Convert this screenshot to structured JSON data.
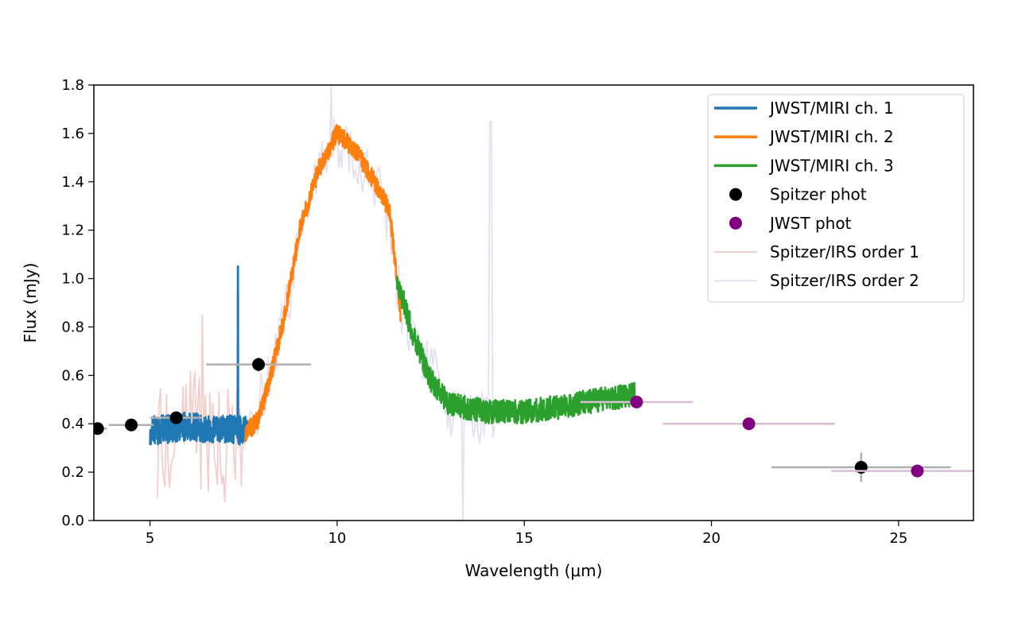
{
  "chart_data": {
    "type": "line",
    "title": "",
    "xlabel": "Wavelength (μm)",
    "ylabel": "Flux (mJy)",
    "xlim": [
      3.5,
      27
    ],
    "ylim": [
      0.0,
      1.8
    ],
    "xticks": [
      5,
      10,
      15,
      20,
      25
    ],
    "xtick_labels": [
      "5",
      "10",
      "15",
      "20",
      "25"
    ],
    "yticks": [
      0.0,
      0.2,
      0.4,
      0.6,
      0.8,
      1.0,
      1.2,
      1.4,
      1.6,
      1.8
    ],
    "ytick_labels": [
      "0.0",
      "0.2",
      "0.4",
      "0.6",
      "0.8",
      "1.0",
      "1.2",
      "1.4",
      "1.6",
      "1.8"
    ],
    "grid": false,
    "legend_position": "top-right",
    "series": [
      {
        "name": "Spitzer/IRS order 1",
        "kind": "line",
        "color": "#f2cfcc",
        "noise": 0.25,
        "seed": 11,
        "points": [
          [
            5.2,
            0.3
          ],
          [
            5.6,
            0.4
          ],
          [
            6.0,
            0.45
          ],
          [
            6.5,
            0.35
          ],
          [
            7.0,
            0.3
          ],
          [
            7.5,
            0.35
          ]
        ]
      },
      {
        "name": "Spitzer/IRS order 2",
        "kind": "line",
        "color": "#e3e0ef",
        "noise": 0.12,
        "seed": 23,
        "points": [
          [
            7.4,
            0.35
          ],
          [
            8.0,
            0.5
          ],
          [
            8.6,
            0.85
          ],
          [
            9.2,
            1.35
          ],
          [
            9.8,
            1.55
          ],
          [
            10.5,
            1.5
          ],
          [
            11.2,
            1.35
          ],
          [
            11.8,
            0.8
          ],
          [
            12.3,
            0.7
          ],
          [
            13.0,
            0.45
          ],
          [
            13.6,
            0.4
          ],
          [
            14.2,
            0.45
          ]
        ]
      },
      {
        "name": "JWST/MIRI ch. 1",
        "kind": "line",
        "color": "#1f77b4",
        "noise": 0.06,
        "seed": 3,
        "points": [
          [
            5.0,
            0.37
          ],
          [
            5.5,
            0.38
          ],
          [
            6.0,
            0.39
          ],
          [
            6.5,
            0.38
          ],
          [
            7.0,
            0.38
          ],
          [
            7.6,
            0.37
          ]
        ]
      },
      {
        "name": "JWST/MIRI ch. 2",
        "kind": "line",
        "color": "#ff7f0e",
        "noise": 0.04,
        "seed": 7,
        "points": [
          [
            7.55,
            0.36
          ],
          [
            7.9,
            0.42
          ],
          [
            8.2,
            0.58
          ],
          [
            8.6,
            0.85
          ],
          [
            9.0,
            1.2
          ],
          [
            9.5,
            1.45
          ],
          [
            10.0,
            1.6
          ],
          [
            10.5,
            1.53
          ],
          [
            11.0,
            1.4
          ],
          [
            11.4,
            1.28
          ],
          [
            11.7,
            0.85
          ]
        ]
      },
      {
        "name": "JWST/MIRI ch. 3",
        "kind": "line",
        "color": "#2ca02c",
        "noise": 0.05,
        "seed": 5,
        "points": [
          [
            11.6,
            1.0
          ],
          [
            12.0,
            0.78
          ],
          [
            12.5,
            0.58
          ],
          [
            13.0,
            0.48
          ],
          [
            14.0,
            0.45
          ],
          [
            15.0,
            0.45
          ],
          [
            16.0,
            0.47
          ],
          [
            17.0,
            0.5
          ],
          [
            17.95,
            0.52
          ]
        ]
      },
      {
        "name": "Spitzer phot",
        "kind": "scatter",
        "color": "#000000",
        "errcolor": "#b0b0b0",
        "x": [
          3.6,
          4.5,
          5.7,
          7.9,
          24.0
        ],
        "y": [
          0.38,
          0.395,
          0.425,
          0.645,
          0.22
        ],
        "xerr_low": [
          3.35,
          3.9,
          5.0,
          6.5,
          21.6
        ],
        "xerr_high": [
          3.85,
          5.1,
          6.4,
          9.3,
          26.4
        ],
        "yerr": [
          0.01,
          0.01,
          0.02,
          0.03,
          0.06
        ]
      },
      {
        "name": "JWST phot",
        "kind": "scatter",
        "color": "#800080",
        "errcolor": "#d8bfd8",
        "x": [
          18.0,
          21.0,
          25.5
        ],
        "y": [
          0.49,
          0.4,
          0.205
        ],
        "xerr_low": [
          16.5,
          18.7,
          23.2
        ],
        "xerr_high": [
          19.5,
          23.3,
          27.0
        ],
        "yerr": [
          0,
          0,
          0
        ]
      }
    ],
    "spikes": [
      {
        "series": "JWST/MIRI ch. 1",
        "x": 7.35,
        "y": 1.05
      },
      {
        "series": "Spitzer/IRS order 2",
        "x": 9.85,
        "y": 1.8
      },
      {
        "series": "Spitzer/IRS order 2",
        "x": 14.1,
        "y": 1.65
      },
      {
        "series": "Spitzer/IRS order 2",
        "x": 13.35,
        "y": 0.0
      },
      {
        "series": "Spitzer/IRS order 1",
        "x": 6.4,
        "y": 0.85
      }
    ],
    "legend": [
      {
        "label": "JWST/MIRI ch. 1",
        "marker": "line",
        "color": "#1f77b4"
      },
      {
        "label": "JWST/MIRI ch. 2",
        "marker": "line",
        "color": "#ff7f0e"
      },
      {
        "label": "JWST/MIRI ch. 3",
        "marker": "line",
        "color": "#2ca02c"
      },
      {
        "label": "Spitzer phot",
        "marker": "dot",
        "color": "#000000"
      },
      {
        "label": "JWST phot",
        "marker": "dot",
        "color": "#800080"
      },
      {
        "label": "Spitzer/IRS order 1",
        "marker": "thinline",
        "color": "#f2cfcc"
      },
      {
        "label": "Spitzer/IRS order 2",
        "marker": "thinline",
        "color": "#e3e0ef"
      }
    ]
  }
}
